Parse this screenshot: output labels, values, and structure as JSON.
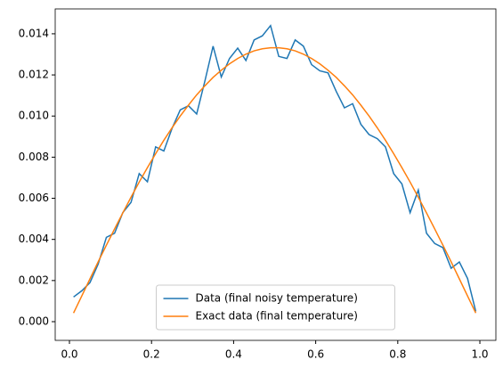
{
  "chart_data": {
    "type": "line",
    "x": [
      0.01,
      0.03,
      0.05,
      0.07,
      0.09,
      0.11,
      0.13,
      0.15,
      0.17,
      0.19,
      0.21,
      0.23,
      0.25,
      0.27,
      0.29,
      0.31,
      0.33,
      0.35,
      0.37,
      0.39,
      0.41,
      0.43,
      0.45,
      0.47,
      0.49,
      0.51,
      0.53,
      0.55,
      0.57,
      0.59,
      0.61,
      0.63,
      0.65,
      0.67,
      0.69,
      0.71,
      0.73,
      0.75,
      0.77,
      0.79,
      0.81,
      0.83,
      0.85,
      0.87,
      0.89,
      0.91,
      0.93,
      0.95,
      0.97,
      0.99
    ],
    "series": [
      {
        "name": "Data (final noisy temperature)",
        "color": "#1f77b4",
        "values": [
          0.0012,
          0.0015,
          0.0019,
          0.0028,
          0.0041,
          0.0043,
          0.0053,
          0.0058,
          0.0072,
          0.0068,
          0.0085,
          0.0083,
          0.0094,
          0.0103,
          0.0105,
          0.0101,
          0.0117,
          0.0134,
          0.0119,
          0.0128,
          0.0133,
          0.0127,
          0.0137,
          0.0139,
          0.0144,
          0.0129,
          0.0128,
          0.0137,
          0.0134,
          0.0125,
          0.0122,
          0.0121,
          0.0112,
          0.0104,
          0.0106,
          0.0096,
          0.0091,
          0.0089,
          0.0085,
          0.0072,
          0.0067,
          0.0053,
          0.0064,
          0.0043,
          0.0038,
          0.0036,
          0.0026,
          0.0029,
          0.0021,
          0.0005
        ]
      },
      {
        "name": "Exact data (final temperature)",
        "color": "#ff7f0e",
        "values": [
          0.00042,
          0.00125,
          0.00208,
          0.00291,
          0.00372,
          0.00451,
          0.00529,
          0.00605,
          0.00679,
          0.00749,
          0.00817,
          0.00882,
          0.00943,
          0.01,
          0.01053,
          0.01103,
          0.01147,
          0.01188,
          0.01223,
          0.01254,
          0.0128,
          0.01301,
          0.01317,
          0.01327,
          0.01332,
          0.01332,
          0.01327,
          0.01317,
          0.01301,
          0.0128,
          0.01254,
          0.01223,
          0.01188,
          0.01147,
          0.01103,
          0.01053,
          0.01,
          0.00943,
          0.00882,
          0.00817,
          0.00749,
          0.00679,
          0.00605,
          0.00529,
          0.00451,
          0.00372,
          0.00291,
          0.00208,
          0.00125,
          0.00042
        ]
      }
    ],
    "xlim": [
      -0.0347,
      1.039
    ],
    "ylim": [
      -0.00091,
      0.01521
    ],
    "xticks": [
      {
        "value": 0,
        "label": "0.0"
      },
      {
        "value": 0.2,
        "label": "0.2"
      },
      {
        "value": 0.4,
        "label": "0.4"
      },
      {
        "value": 0.6,
        "label": "0.6"
      },
      {
        "value": 0.8,
        "label": "0.8"
      },
      {
        "value": 1,
        "label": "1.0"
      }
    ],
    "yticks": [
      {
        "value": 0,
        "label": "0.000"
      },
      {
        "value": 0.002,
        "label": "0.002"
      },
      {
        "value": 0.004,
        "label": "0.004"
      },
      {
        "value": 0.006,
        "label": "0.006"
      },
      {
        "value": 0.008,
        "label": "0.008"
      },
      {
        "value": 0.01,
        "label": "0.010"
      },
      {
        "value": 0.012,
        "label": "0.012"
      },
      {
        "value": 0.014,
        "label": "0.014"
      }
    ],
    "legend": "lower center",
    "grid": false
  }
}
